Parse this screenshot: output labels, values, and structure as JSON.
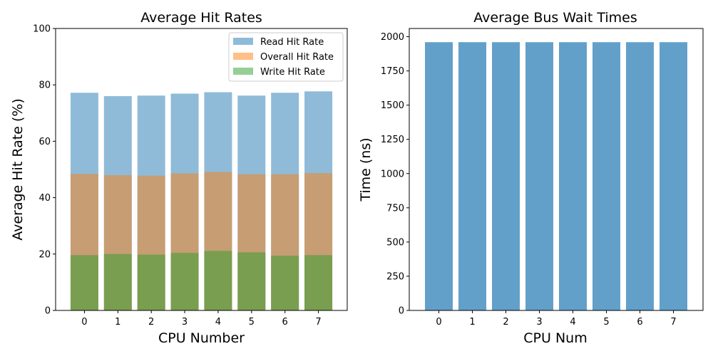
{
  "chart_data": [
    {
      "type": "bar",
      "title": "Average Hit Rates",
      "xlabel": "CPU Number",
      "ylabel": "Average Hit Rate (%)",
      "categories": [
        "0",
        "1",
        "2",
        "3",
        "4",
        "5",
        "6",
        "7"
      ],
      "ylim": [
        0,
        100
      ],
      "yticks": [
        "0",
        "20",
        "40",
        "60",
        "80",
        "100"
      ],
      "overlay": true,
      "legend_position": "top-right",
      "series": [
        {
          "name": "Read Hit Rate",
          "color": "#1f77b4",
          "opacity": 0.5,
          "values": [
            77.2,
            76.0,
            76.2,
            76.9,
            77.4,
            76.2,
            77.2,
            77.7
          ]
        },
        {
          "name": "Overall Hit Rate",
          "color": "#ff7f0e",
          "opacity": 0.5,
          "values": [
            48.4,
            48.0,
            47.8,
            48.6,
            49.1,
            48.3,
            48.3,
            48.7
          ]
        },
        {
          "name": "Write Hit Rate",
          "color": "#2ca02c",
          "opacity": 0.5,
          "values": [
            19.6,
            20.0,
            19.8,
            20.4,
            21.1,
            20.6,
            19.4,
            19.6
          ]
        }
      ]
    },
    {
      "type": "bar",
      "title": "Average Bus Wait Times",
      "xlabel": "CPU Num",
      "ylabel": "Time (ns)",
      "categories": [
        "0",
        "1",
        "2",
        "3",
        "4",
        "5",
        "6",
        "7"
      ],
      "ylim": [
        0,
        2060
      ],
      "yticks": [
        "0",
        "250",
        "500",
        "750",
        "1000",
        "1250",
        "1500",
        "1750",
        "2000"
      ],
      "series": [
        {
          "color": "#1f77b4",
          "opacity": 0.7,
          "values": [
            1960,
            1960,
            1960,
            1960,
            1960,
            1960,
            1960,
            1960
          ]
        }
      ]
    }
  ]
}
